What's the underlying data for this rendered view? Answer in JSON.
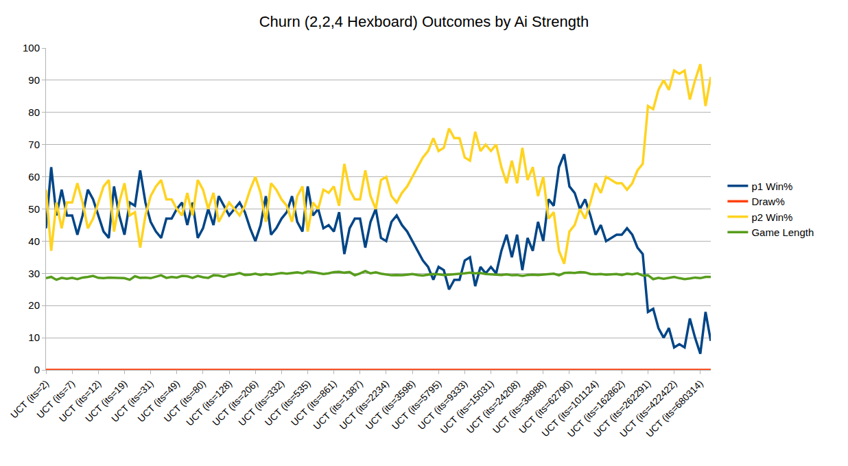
{
  "chart_data": {
    "type": "line",
    "title": "Churn (2,2,4 Hexboard) Outcomes by Ai Strength",
    "categories": [
      "UCT (its=2)",
      null,
      null,
      null,
      null,
      "UCT (its=7)",
      null,
      null,
      null,
      null,
      "UCT (its=12)",
      null,
      null,
      null,
      null,
      "UCT (its=19)",
      null,
      null,
      null,
      null,
      "UCT (its=31)",
      null,
      null,
      null,
      null,
      "UCT (its=49)",
      null,
      null,
      null,
      null,
      "UCT (its=80)",
      null,
      null,
      null,
      null,
      "UCT (its=128)",
      null,
      null,
      null,
      null,
      "UCT (its=206)",
      null,
      null,
      null,
      null,
      "UCT (its=332)",
      null,
      null,
      null,
      null,
      "UCT (its=535)",
      null,
      null,
      null,
      null,
      "UCT (its=861)",
      null,
      null,
      null,
      null,
      "UCT (its=1387)",
      null,
      null,
      null,
      null,
      "UCT (its=2234)",
      null,
      null,
      null,
      null,
      "UCT (its=3598)",
      null,
      null,
      null,
      null,
      "UCT (its=5795)",
      null,
      null,
      null,
      null,
      "UCT (its=9333)",
      null,
      null,
      null,
      null,
      "UCT (its=15031)",
      null,
      null,
      null,
      null,
      "UCT (its=24208)",
      null,
      null,
      null,
      null,
      "UCT (its=38988)",
      null,
      null,
      null,
      null,
      "UCT (its=62790)",
      null,
      null,
      null,
      null,
      "UCT (its=101124)",
      null,
      null,
      null,
      null,
      "UCT (its=162862)",
      null,
      null,
      null,
      null,
      "UCT (its=262291)",
      null,
      null,
      null,
      null,
      "UCT (its=422422)",
      null,
      null,
      null,
      null,
      "UCT (its=680314)",
      null,
      null
    ],
    "series": [
      {
        "name": "p1 Win%",
        "color": "#004586",
        "values": [
          44,
          63,
          48,
          56,
          48,
          48,
          42,
          48,
          56,
          53,
          48,
          43,
          41,
          57,
          48,
          42,
          52,
          51,
          62,
          52,
          46,
          43,
          41,
          47,
          47,
          50,
          52,
          45,
          52,
          41,
          44,
          50,
          45,
          54,
          51,
          48,
          50,
          52,
          49,
          44,
          40,
          45,
          54,
          42,
          44,
          47,
          49,
          54,
          46,
          43,
          57,
          48,
          50,
          44,
          45,
          43,
          49,
          36,
          44,
          47,
          47,
          38,
          46,
          50,
          41,
          40,
          46,
          48,
          45,
          43,
          40,
          37,
          34,
          32,
          28,
          32,
          31,
          25,
          28,
          28,
          34,
          35,
          26,
          32,
          30,
          32,
          30,
          37,
          42,
          35,
          42,
          31,
          41,
          37,
          46,
          40,
          53,
          51,
          63,
          67,
          57,
          55,
          50,
          53,
          48,
          42,
          45,
          40,
          41,
          42,
          42,
          44,
          42,
          38,
          36,
          18,
          19,
          13,
          10,
          13,
          7,
          8,
          7,
          16,
          10,
          5,
          18,
          9
        ]
      },
      {
        "name": "Draw%",
        "color": "#ff420e",
        "values": [
          0,
          0,
          0,
          0,
          0,
          0,
          0,
          0,
          0,
          0,
          0,
          0,
          0,
          0,
          0,
          0,
          0,
          0,
          0,
          0,
          0,
          0,
          0,
          0,
          0,
          0,
          0,
          0,
          0,
          0,
          0,
          0,
          0,
          0,
          0,
          0,
          0,
          0,
          0,
          0,
          0,
          0,
          0,
          0,
          0,
          0,
          0,
          0,
          0,
          0,
          0,
          0,
          0,
          0,
          0,
          0,
          0,
          0,
          0,
          0,
          0,
          0,
          0,
          0,
          0,
          0,
          0,
          0,
          0,
          0,
          0,
          0,
          0,
          0,
          0,
          0,
          0,
          0,
          0,
          0,
          0,
          0,
          0,
          0,
          0,
          0,
          0,
          0,
          0,
          0,
          0,
          0,
          0,
          0,
          0,
          0,
          0,
          0,
          0,
          0,
          0,
          0,
          0,
          0,
          0,
          0,
          0,
          0,
          0,
          0,
          0,
          0,
          0,
          0,
          0,
          0,
          0,
          0,
          0,
          0,
          0,
          0,
          0,
          0,
          0,
          0,
          0,
          0
        ]
      },
      {
        "name": "p2 Win%",
        "color": "#ffd320",
        "values": [
          56,
          37,
          52,
          44,
          52,
          52,
          58,
          52,
          44,
          47,
          52,
          57,
          59,
          43,
          52,
          58,
          48,
          49,
          38,
          48,
          54,
          57,
          59,
          53,
          53,
          50,
          48,
          55,
          48,
          59,
          56,
          50,
          55,
          46,
          49,
          52,
          50,
          48,
          51,
          56,
          60,
          55,
          46,
          58,
          56,
          53,
          51,
          46,
          54,
          57,
          43,
          52,
          50,
          56,
          55,
          57,
          51,
          64,
          56,
          53,
          53,
          62,
          54,
          50,
          59,
          60,
          54,
          52,
          55,
          57,
          60,
          63,
          66,
          68,
          72,
          68,
          69,
          75,
          72,
          72,
          66,
          65,
          74,
          68,
          70,
          68,
          70,
          63,
          58,
          65,
          58,
          69,
          59,
          63,
          54,
          60,
          47,
          49,
          37,
          33,
          43,
          45,
          50,
          47,
          52,
          58,
          55,
          60,
          59,
          58,
          58,
          56,
          58,
          62,
          64,
          82,
          81,
          87,
          90,
          87,
          93,
          92,
          93,
          84,
          90,
          95,
          82,
          91
        ]
      },
      {
        "name": "Game Length",
        "color": "#579d1c",
        "values": [
          28.5,
          28.9,
          28.0,
          28.6,
          28.3,
          28.6,
          28.2,
          28.7,
          28.9,
          29.2,
          28.6,
          28.5,
          28.7,
          28.6,
          28.6,
          28.5,
          28.0,
          29.1,
          28.6,
          28.7,
          28.5,
          28.9,
          29.4,
          28.6,
          28.9,
          28.7,
          29.2,
          29.1,
          28.6,
          29.2,
          28.8,
          28.6,
          29.4,
          29.3,
          28.9,
          29.5,
          29.7,
          30.1,
          29.5,
          29.6,
          29.9,
          29.5,
          29.8,
          29.6,
          29.9,
          30.1,
          29.9,
          30.1,
          30.3,
          30.0,
          30.6,
          30.4,
          30.1,
          29.8,
          30.0,
          30.4,
          30.5,
          30.2,
          30.4,
          29.4,
          30.0,
          30.7,
          30.0,
          30.3,
          29.9,
          29.7,
          29.4,
          29.5,
          29.4,
          29.6,
          29.8,
          29.5,
          29.3,
          29.6,
          29.8,
          29.7,
          29.5,
          29.6,
          29.7,
          29.8,
          30.0,
          30.2,
          30.0,
          30.1,
          29.8,
          29.7,
          29.6,
          29.5,
          29.7,
          29.4,
          29.5,
          29.2,
          29.5,
          29.6,
          29.5,
          29.6,
          29.7,
          29.9,
          29.4,
          30.1,
          30.2,
          30.1,
          30.4,
          30.3,
          29.8,
          29.7,
          29.8,
          29.6,
          29.7,
          29.8,
          29.5,
          29.9,
          29.7,
          30.0,
          29.3,
          29.4,
          28.2,
          28.6,
          28.3,
          28.6,
          28.9,
          28.5,
          28.2,
          28.4,
          28.7,
          28.5,
          28.9,
          28.9
        ]
      }
    ],
    "ylim": [
      0,
      100
    ],
    "yticks": [
      0,
      10,
      20,
      30,
      40,
      50,
      60,
      70,
      80,
      90,
      100
    ],
    "grid": true,
    "legend": "right"
  }
}
